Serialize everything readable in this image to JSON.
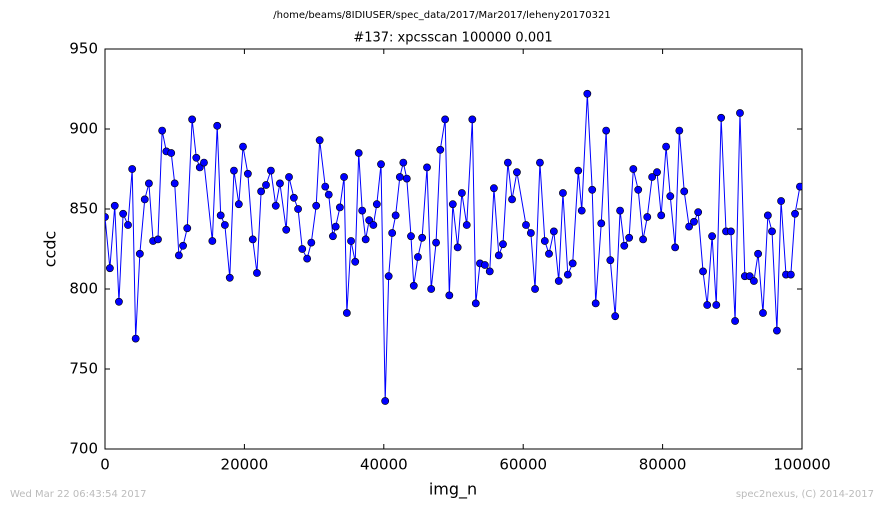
{
  "chart_data": {
    "type": "line",
    "suptitle": "/home/beams/8IDIUSER/spec_data/2017/Mar2017/leheny20170321",
    "title": "#137: xpcsscan 100000 0.001",
    "xlabel": "img_n",
    "ylabel": "ccdc",
    "footer_left": "Wed Mar 22 06:43:54 2017",
    "footer_right": "spec2nexus, (C) 2014-2017",
    "color": "#0000ff",
    "xlim": [
      0,
      100000
    ],
    "xticks": [
      0,
      20000,
      40000,
      60000,
      80000,
      100000
    ],
    "ylim": [
      700,
      950
    ],
    "yticks": [
      700,
      750,
      800,
      850,
      900,
      950
    ],
    "x": [
      0,
      700,
      1400,
      2000,
      2600,
      3300,
      3900,
      4400,
      5000,
      5700,
      6300,
      6900,
      7600,
      8200,
      8800,
      9500,
      10000,
      10600,
      11200,
      11800,
      12500,
      13100,
      13600,
      14200,
      15400,
      16100,
      16600,
      17200,
      17900,
      18500,
      19200,
      19800,
      20500,
      21200,
      21800,
      22400,
      23100,
      23800,
      24500,
      25100,
      26000,
      26400,
      27100,
      27700,
      28300,
      29000,
      29600,
      30300,
      30800,
      31600,
      32100,
      32700,
      33100,
      33700,
      34300,
      34700,
      35300,
      35900,
      36400,
      36900,
      37400,
      37900,
      38500,
      39000,
      39600,
      40200,
      40700,
      41200,
      41700,
      42300,
      42800,
      43300,
      43900,
      44300,
      44900,
      45500,
      46200,
      46800,
      47500,
      48100,
      48800,
      49400,
      49900,
      50600,
      51200,
      51900,
      52700,
      53200,
      53800,
      54500,
      55200,
      55800,
      56500,
      57100,
      57800,
      58400,
      59100,
      60400,
      61100,
      61700,
      62400,
      63100,
      63700,
      64400,
      65100,
      65700,
      66400,
      67100,
      67900,
      68400,
      69200,
      69900,
      70400,
      71200,
      71900,
      72500,
      73200,
      73900,
      74500,
      75200,
      75800,
      76500,
      77200,
      77800,
      78500,
      79200,
      79800,
      80500,
      81100,
      81800,
      82400,
      83100,
      83800,
      84500,
      85100,
      85800,
      86400,
      87100,
      87700,
      88400,
      89100,
      89800,
      90400,
      91100,
      91800,
      92500,
      93100,
      93700,
      94400,
      95100,
      95700,
      96400,
      97000,
      97700,
      98400,
      99000,
      99700
    ],
    "values": [
      845,
      813,
      852,
      792,
      847,
      840,
      875,
      769,
      822,
      856,
      866,
      830,
      831,
      899,
      886,
      885,
      866,
      821,
      827,
      838,
      906,
      882,
      876,
      879,
      830,
      902,
      846,
      840,
      807,
      874,
      853,
      889,
      872,
      831,
      810,
      861,
      865,
      874,
      852,
      866,
      837,
      870,
      857,
      850,
      825,
      819,
      829,
      852,
      893,
      864,
      859,
      833,
      839,
      851,
      870,
      785,
      830,
      817,
      885,
      849,
      831,
      843,
      840,
      853,
      878,
      730,
      808,
      835,
      846,
      870,
      879,
      869,
      833,
      802,
      820,
      832,
      876,
      800,
      829,
      887,
      906,
      796,
      853,
      826,
      860,
      840,
      906,
      791,
      816,
      815,
      811,
      863,
      821,
      828,
      879,
      856,
      873,
      840,
      835,
      800,
      879,
      830,
      822,
      836,
      805,
      860,
      809,
      816,
      874,
      849,
      922,
      862,
      791,
      841,
      899,
      818,
      783,
      849,
      827,
      832,
      875,
      862,
      831,
      845,
      870,
      873,
      846,
      889,
      858,
      826,
      899,
      861,
      839,
      842,
      848,
      811,
      790,
      833,
      790,
      907,
      836,
      836,
      780,
      910,
      808,
      808,
      805,
      822,
      785,
      846,
      836,
      774,
      855,
      809,
      809,
      847,
      864
    ]
  }
}
